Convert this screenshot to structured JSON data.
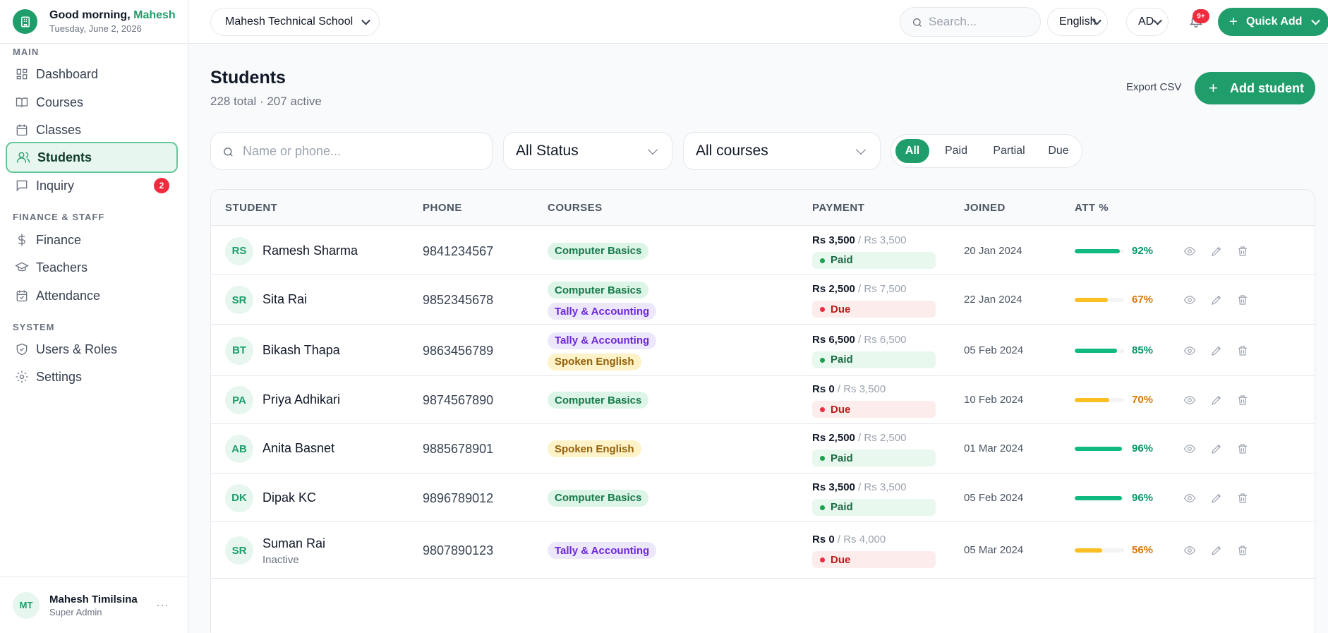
{
  "sidebar": {
    "greeting_prefix": "Good morning,",
    "greeting_name": "Mahesh",
    "date": "Tuesday, June 2, 2026",
    "sections": {
      "main": "MAIN",
      "finance": "FINANCE & STAFF",
      "system": "SYSTEM"
    },
    "items": [
      {
        "label": "Dashboard",
        "icon": "grid-icon"
      },
      {
        "label": "Courses",
        "icon": "book-icon"
      },
      {
        "label": "Classes",
        "icon": "calendar-icon"
      },
      {
        "label": "Students",
        "icon": "users-icon",
        "active": true
      },
      {
        "label": "Inquiry",
        "icon": "message-icon",
        "badge": "2"
      },
      {
        "label": "Finance",
        "icon": "dollar-icon"
      },
      {
        "label": "Teachers",
        "icon": "graduation-cap-icon"
      },
      {
        "label": "Attendance",
        "icon": "calendar-check-icon"
      },
      {
        "label": "Users & Roles",
        "icon": "shield-icon"
      },
      {
        "label": "Settings",
        "icon": "gear-icon"
      }
    ],
    "user": {
      "initials": "MT",
      "name": "Mahesh Timilsina",
      "role": "Super Admin",
      "more": "···"
    }
  },
  "topbar": {
    "school": "Mahesh Technical School",
    "search_placeholder": "Search...",
    "language": "English",
    "account": "AD",
    "notif_badge": "9+",
    "quick_add": "Quick Add"
  },
  "page": {
    "title": "Students",
    "subtitle": "228 total · 207 active",
    "export_label": "Export CSV",
    "add_label": "Add student"
  },
  "filters": {
    "search_placeholder": "Name or phone...",
    "status": "All Status",
    "course": "All courses",
    "segments": [
      "All",
      "Paid",
      "Partial",
      "Due"
    ],
    "active_segment": "All"
  },
  "table": {
    "headers": [
      "STUDENT",
      "PHONE",
      "COURSES",
      "PAYMENT",
      "JOINED",
      "ATT %"
    ],
    "rows": [
      {
        "initials": "RS",
        "name": "Ramesh Sharma",
        "status": "",
        "phone": "9841234567",
        "courses": [
          "Computer Basics"
        ],
        "paid": "Rs 3,500",
        "total": " / Rs 3,500",
        "pay_status": "Paid",
        "joined": "20 Jan 2024",
        "att": "92%",
        "att_value": 92
      },
      {
        "initials": "SR",
        "name": "Sita Rai",
        "status": "",
        "phone": "9852345678",
        "courses": [
          "Computer Basics",
          "Tally & Accounting"
        ],
        "paid": "Rs 2,500",
        "total": " / Rs 7,500",
        "pay_status": "Due",
        "joined": "22 Jan 2024",
        "att": "67%",
        "att_value": 67
      },
      {
        "initials": "BT",
        "name": "Bikash Thapa",
        "status": "",
        "phone": "9863456789",
        "courses": [
          "Tally & Accounting",
          "Spoken English"
        ],
        "paid": "Rs 6,500",
        "total": " / Rs 6,500",
        "pay_status": "Paid",
        "joined": "05 Feb 2024",
        "att": "85%",
        "att_value": 85
      },
      {
        "initials": "PA",
        "name": "Priya Adhikari",
        "status": "",
        "phone": "9874567890",
        "courses": [
          "Computer Basics"
        ],
        "paid": "Rs 0",
        "total": " / Rs 3,500",
        "pay_status": "Due",
        "joined": "10 Feb 2024",
        "att": "70%",
        "att_value": 70
      },
      {
        "initials": "AB",
        "name": "Anita Basnet",
        "status": "",
        "phone": "9885678901",
        "courses": [
          "Spoken English"
        ],
        "paid": "Rs 2,500",
        "total": " / Rs 2,500",
        "pay_status": "Paid",
        "joined": "01 Mar 2024",
        "att": "96%",
        "att_value": 96
      },
      {
        "initials": "DK",
        "name": "Dipak KC",
        "status": "",
        "phone": "9896789012",
        "courses": [
          "Computer Basics"
        ],
        "paid": "Rs 3,500",
        "total": " / Rs 3,500",
        "pay_status": "Paid",
        "joined": "05 Feb 2024",
        "att": "96%",
        "att_value": 96
      },
      {
        "initials": "SR",
        "name": "Suman Rai",
        "status": "Inactive",
        "phone": "9807890123",
        "courses": [
          "Tally & Accounting"
        ],
        "paid": "Rs 0",
        "total": " / Rs 4,000",
        "pay_status": "Due",
        "joined": "05 Mar 2024",
        "att": "56%",
        "att_value": 56
      }
    ]
  },
  "colors": {
    "accent": "#1f9d6b",
    "good": "#10b981",
    "warn": "#fbbf24",
    "warn_text": "#d97706",
    "danger": "#ef2b3d"
  }
}
